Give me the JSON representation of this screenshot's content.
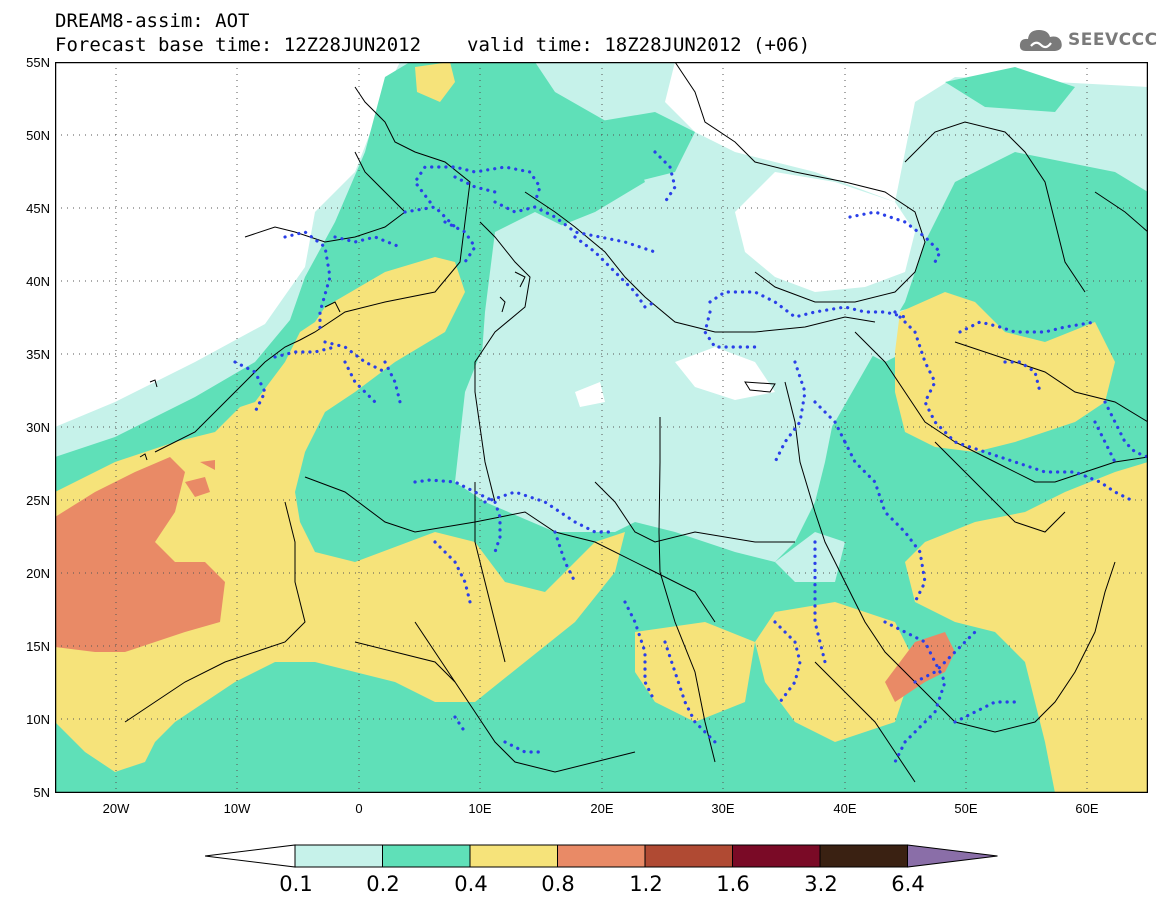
{
  "header": {
    "line1": "DREAM8-assim: AOT",
    "base_time": "Forecast base time: 12Z28JUN2012",
    "valid_time": "valid time: 18Z28JUN2012 (+06)"
  },
  "logo": {
    "text": "SEEVCCC",
    "icon": "cloud-icon"
  },
  "map": {
    "lat_labels": [
      "55N",
      "50N",
      "45N",
      "40N",
      "35N",
      "30N",
      "25N",
      "20N",
      "15N",
      "10N",
      "5N"
    ],
    "lon_labels": [
      "20W",
      "10W",
      "0",
      "10E",
      "20E",
      "30E",
      "40E",
      "50E",
      "60E"
    ],
    "lon_range": [
      -25,
      65
    ],
    "lat_range": [
      5,
      55
    ],
    "gridlines": true
  },
  "colorbar": {
    "labels": [
      "0.1",
      "0.2",
      "0.4",
      "0.8",
      "1.2",
      "1.6",
      "3.2",
      "6.4"
    ],
    "colors": [
      "#ffffff",
      "#c6f2ea",
      "#5fe0b8",
      "#f6e37a",
      "#e98a66",
      "#b04a33",
      "#7a0a26",
      "#3a2112",
      "#8a6ea8"
    ]
  },
  "colors": {
    "aot_01_02": "#c6f2ea",
    "aot_02_04": "#5fe0b8",
    "aot_04_08": "#f6e37a",
    "aot_08_12": "#e98a66",
    "dotted_contour": "#2a3fe8"
  }
}
